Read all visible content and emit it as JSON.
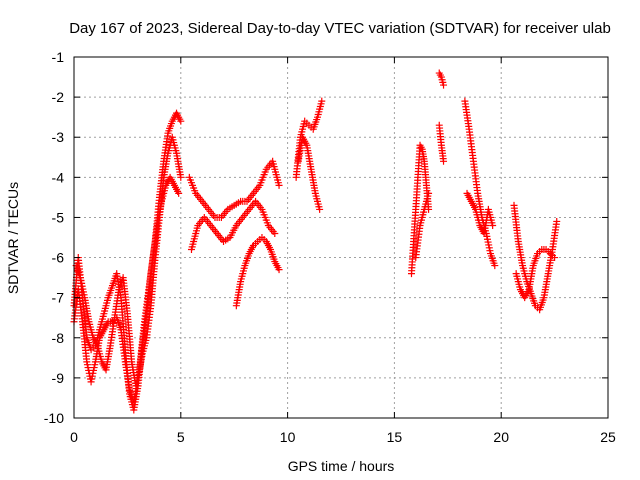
{
  "chart_data": {
    "type": "scatter",
    "title": "Day 167 of 2023, Sidereal Day-to-day VTEC variation (SDTVAR) for receiver ulab",
    "xlabel": "GPS time / hours",
    "ylabel": "SDTVAR / TECUs",
    "xlim": [
      0,
      25
    ],
    "ylim": [
      -10,
      -1
    ],
    "xticks": [
      0,
      5,
      10,
      15,
      20,
      25
    ],
    "yticks": [
      -1,
      -2,
      -3,
      -4,
      -5,
      -6,
      -7,
      -8,
      -9,
      -10
    ],
    "grid": true,
    "marker": "+",
    "series": [
      {
        "name": "SDTVAR",
        "color": "#ff0000",
        "segments": [
          {
            "x": [
              0.0,
              0.2,
              0.4,
              0.6,
              0.8,
              1.0,
              1.2,
              1.4,
              1.6,
              1.8,
              2.0,
              2.2,
              2.4,
              2.6,
              2.8,
              3.0,
              3.2,
              3.4,
              3.6,
              3.8,
              4.0,
              4.2,
              4.4,
              4.6,
              4.8,
              5.0
            ],
            "y": [
              -7.2,
              -6.0,
              -7.0,
              -8.0,
              -8.3,
              -8.2,
              -7.8,
              -7.4,
              -7.0,
              -6.7,
              -6.4,
              -7.0,
              -8.3,
              -9.4,
              -9.8,
              -9.2,
              -8.2,
              -7.4,
              -6.4,
              -5.6,
              -4.5,
              -3.6,
              -2.9,
              -2.6,
              -2.4,
              -2.6
            ]
          },
          {
            "x": [
              0.0,
              0.2,
              0.4,
              0.6,
              0.8,
              1.0,
              1.2,
              1.4,
              1.6,
              1.8,
              2.0,
              2.2,
              2.4,
              2.6,
              2.8,
              3.0,
              3.2,
              3.4,
              3.6,
              3.8,
              4.0,
              4.2,
              4.4,
              4.6,
              4.8,
              5.0
            ],
            "y": [
              -7.6,
              -6.8,
              -7.6,
              -8.6,
              -9.1,
              -8.6,
              -8.0,
              -7.8,
              -7.6,
              -7.6,
              -7.5,
              -7.8,
              -8.6,
              -9.3,
              -9.6,
              -9.0,
              -8.4,
              -8.0,
              -7.2,
              -6.0,
              -5.0,
              -4.0,
              -3.4,
              -3.0,
              -3.4,
              -4.0
            ]
          },
          {
            "x": [
              0.1,
              0.3,
              0.5,
              0.7,
              0.9,
              1.1,
              1.3,
              1.5,
              1.7,
              1.9,
              2.1,
              2.3,
              2.5,
              2.7,
              2.9,
              3.1,
              3.3,
              3.5,
              3.7,
              3.9,
              4.1,
              4.3,
              4.5,
              4.7,
              4.9
            ],
            "y": [
              -6.2,
              -6.5,
              -7.0,
              -7.6,
              -8.0,
              -8.2,
              -8.6,
              -8.8,
              -8.2,
              -7.5,
              -6.8,
              -6.5,
              -7.4,
              -8.6,
              -9.2,
              -8.6,
              -7.6,
              -6.8,
              -6.0,
              -5.2,
              -4.6,
              -4.2,
              -4.0,
              -4.2,
              -4.4
            ]
          },
          {
            "x": [
              5.4,
              5.7,
              6.0,
              6.3,
              6.6,
              6.9,
              7.2,
              7.5,
              7.8,
              8.1,
              8.4,
              8.7,
              9.0,
              9.3,
              9.6
            ],
            "y": [
              -4.0,
              -4.4,
              -4.6,
              -4.8,
              -5.0,
              -5.0,
              -4.8,
              -4.7,
              -4.6,
              -4.6,
              -4.4,
              -4.2,
              -3.8,
              -3.6,
              -4.2
            ]
          },
          {
            "x": [
              5.5,
              5.8,
              6.1,
              6.4,
              6.7,
              7.0,
              7.3,
              7.6,
              7.9,
              8.2,
              8.5,
              8.8,
              9.1,
              9.4
            ],
            "y": [
              -5.8,
              -5.2,
              -5.0,
              -5.2,
              -5.4,
              -5.6,
              -5.5,
              -5.2,
              -5.0,
              -4.8,
              -4.6,
              -4.8,
              -5.2,
              -5.4
            ]
          },
          {
            "x": [
              7.6,
              7.8,
              8.0,
              8.2,
              8.4,
              8.6,
              8.8,
              9.0,
              9.2,
              9.4,
              9.6
            ],
            "y": [
              -7.2,
              -6.6,
              -6.2,
              -5.9,
              -5.7,
              -5.6,
              -5.5,
              -5.6,
              -5.8,
              -6.1,
              -6.3
            ]
          },
          {
            "x": [
              10.4,
              10.6,
              10.8,
              11.0,
              11.2,
              11.4,
              11.6
            ],
            "y": [
              -4.0,
              -3.0,
              -2.6,
              -2.7,
              -2.8,
              -2.5,
              -2.1
            ]
          },
          {
            "x": [
              10.5,
              10.7,
              10.9,
              11.1,
              11.3,
              11.5
            ],
            "y": [
              -3.6,
              -3.0,
              -3.2,
              -3.8,
              -4.4,
              -4.8
            ]
          },
          {
            "x": [
              15.8,
              15.9,
              16.0,
              16.1,
              16.2,
              16.3,
              16.4,
              16.5,
              16.6
            ],
            "y": [
              -6.4,
              -5.6,
              -4.8,
              -4.0,
              -3.2,
              -3.3,
              -3.6,
              -4.2,
              -4.8
            ]
          },
          {
            "x": [
              16.0,
              16.2,
              16.4,
              16.6
            ],
            "y": [
              -6.0,
              -5.2,
              -4.8,
              -4.4
            ]
          },
          {
            "x": [
              17.1,
              17.2,
              17.3
            ],
            "y": [
              -1.4,
              -1.5,
              -1.7
            ]
          },
          {
            "x": [
              17.1,
              17.2,
              17.3
            ],
            "y": [
              -2.7,
              -3.2,
              -3.6
            ]
          },
          {
            "x": [
              18.3,
              18.5,
              18.7,
              18.9,
              19.1,
              19.3,
              19.5,
              19.7
            ],
            "y": [
              -2.1,
              -2.8,
              -3.6,
              -4.4,
              -5.0,
              -5.4,
              -5.9,
              -6.2
            ]
          },
          {
            "x": [
              18.4,
              18.6,
              18.8,
              19.0,
              19.2,
              19.4,
              19.6
            ],
            "y": [
              -4.4,
              -4.6,
              -4.8,
              -5.2,
              -5.4,
              -4.8,
              -5.2
            ]
          },
          {
            "x": [
              20.6,
              20.8,
              21.0,
              21.2,
              21.4,
              21.6,
              21.8,
              22.0,
              22.2,
              22.4,
              22.6
            ],
            "y": [
              -4.7,
              -5.6,
              -6.2,
              -6.6,
              -6.9,
              -7.2,
              -7.3,
              -7.0,
              -6.4,
              -5.8,
              -5.1
            ]
          },
          {
            "x": [
              20.7,
              20.9,
              21.1,
              21.3,
              21.5,
              21.7,
              21.9,
              22.1,
              22.3,
              22.5
            ],
            "y": [
              -6.4,
              -6.8,
              -7.0,
              -6.8,
              -6.2,
              -5.9,
              -5.8,
              -5.8,
              -5.9,
              -6.0
            ]
          }
        ]
      }
    ]
  }
}
